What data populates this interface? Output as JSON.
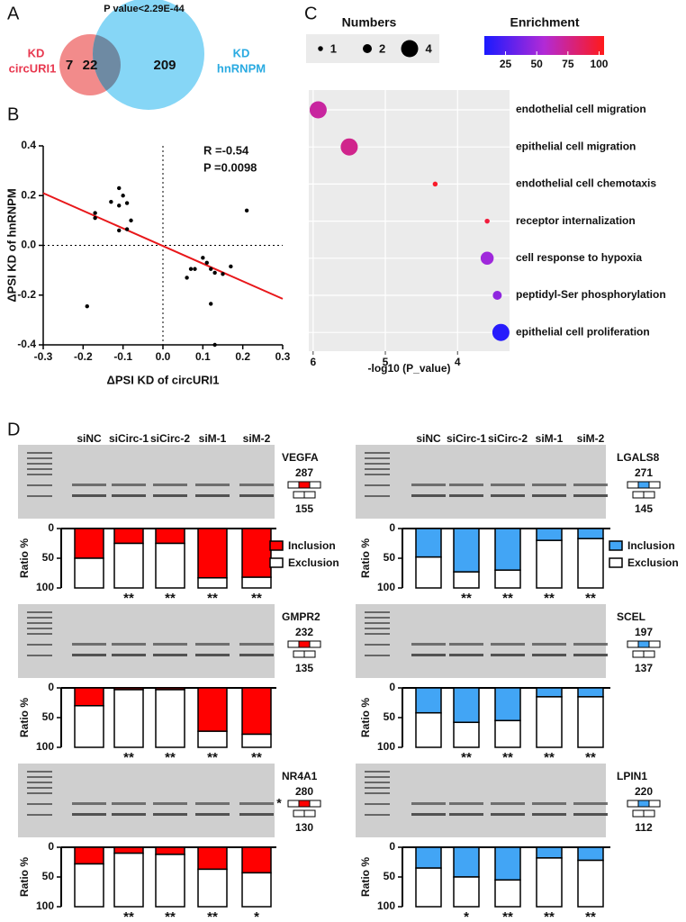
{
  "panel_labels": [
    "A",
    "B",
    "C",
    "D"
  ],
  "chart_data": [
    {
      "type": "venn",
      "title": "P value<2.29E-44",
      "sets": [
        {
          "label": [
            "KD",
            "circURI1"
          ],
          "color": "#f28b8b",
          "text_color": "#e8384f"
        },
        {
          "label": [
            "KD",
            "hnRNPM"
          ],
          "color": "#86d6f6",
          "text_color": "#29aae1"
        }
      ],
      "values": [
        7,
        22,
        209
      ],
      "overlap_color": "#6e8aa3"
    },
    {
      "type": "scatter",
      "x": [
        -0.17,
        -0.17,
        -0.13,
        -0.11,
        -0.1,
        -0.11,
        -0.09,
        -0.08,
        -0.11,
        -0.09,
        -0.19,
        0.21,
        0.07,
        0.06,
        0.08,
        0.1,
        0.11,
        0.12,
        0.13,
        0.15,
        0.17,
        0.12,
        0.13
      ],
      "y": [
        0.13,
        0.11,
        0.175,
        0.23,
        0.2,
        0.16,
        0.17,
        0.1,
        0.06,
        0.065,
        -0.245,
        0.14,
        -0.095,
        -0.13,
        -0.095,
        -0.05,
        -0.07,
        -0.095,
        -0.11,
        -0.115,
        -0.085,
        -0.235,
        -0.4
      ],
      "color": "#000000",
      "fit": {
        "x": [
          -0.3,
          0.3
        ],
        "y": [
          0.21,
          -0.215
        ],
        "color": "#e8171a"
      },
      "annotations": [
        "R =-0.54",
        "P =0.0098"
      ],
      "x_label": "ΔPSI KD of circURI1",
      "y_label": "ΔPSI KD of hnRNPM",
      "xlim": [
        -0.3,
        0.3
      ],
      "xticks": [
        -0.3,
        -0.2,
        -0.1,
        {
          "value": 0,
          "label": "0.0"
        },
        0.1,
        0.2,
        0.3
      ],
      "ylim": [
        -0.4,
        0.4
      ],
      "yticks": [
        -0.4,
        -0.2,
        {
          "value": 0,
          "label": "0.0"
        },
        0.2,
        0.4
      ]
    },
    {
      "type": "bubble",
      "categories": [
        "endothelial cell migration",
        "epithelial cell migration",
        "endothelial cell chemotaxis",
        "receptor internalization",
        "cell response to hypoxia",
        "peptidyl-Ser phosphorylation",
        "epithelial cell proliferation"
      ],
      "x": [
        5.93,
        5.5,
        4.31,
        3.59,
        3.59,
        3.45,
        3.4
      ],
      "sizes": [
        4,
        4,
        1,
        1,
        3,
        2,
        4
      ],
      "enrichment": [
        70,
        75,
        100,
        95,
        50,
        45,
        12
      ],
      "xlim": [
        6.06,
        3.28
      ],
      "xticks": [
        6,
        5,
        4
      ],
      "x_label": "-log10 (P_value)",
      "background": "#ebebeb",
      "size_legend": {
        "title": "Numbers",
        "values": [
          1,
          2,
          4
        ]
      },
      "color_legend": {
        "title": "Enrichment",
        "clim": [
          8,
          104
        ],
        "ticks": [
          25,
          50,
          75,
          100
        ],
        "colors": [
          "#1a1aff",
          "#b22ad6",
          "#ff1a1a"
        ]
      }
    },
    {
      "type": "stacked_bar",
      "lanes": [
        "siNC",
        "siCirc-1",
        "siCirc-2",
        "siM-1",
        "siM-2"
      ],
      "series_names": [
        "Inclusion",
        "Exclusion"
      ],
      "y_label": "Ratio %",
      "ylim": [
        0,
        100
      ],
      "yticks": [
        0,
        50,
        100
      ],
      "y_reversed": true,
      "panels": [
        {
          "gene": "VEGFA",
          "sizes": [
            287,
            155
          ],
          "colors": [
            "#ff0000",
            "#ffffff"
          ],
          "series": [
            {
              "values": [
                50,
                25,
                25,
                83,
                82
              ]
            },
            {
              "values": [
                50,
                75,
                75,
                17,
                18
              ]
            }
          ],
          "stars": [
            null,
            "**",
            "**",
            "**",
            "**"
          ]
        },
        {
          "gene": "LGALS8",
          "sizes": [
            271,
            145
          ],
          "colors": [
            "#42a5f5",
            "#ffffff"
          ],
          "series": [
            {
              "values": [
                48,
                73,
                70,
                20,
                17
              ]
            },
            {
              "values": [
                52,
                27,
                30,
                80,
                83
              ]
            }
          ],
          "stars": [
            null,
            "**",
            "**",
            "**",
            "**"
          ]
        },
        {
          "gene": "GMPR2",
          "sizes": [
            232,
            135
          ],
          "colors": [
            "#ff0000",
            "#ffffff"
          ],
          "series": [
            {
              "values": [
                30,
                3,
                3,
                73,
                78
              ]
            },
            {
              "values": [
                70,
                97,
                97,
                27,
                22
              ]
            }
          ],
          "stars": [
            null,
            "**",
            "**",
            "**",
            "**"
          ]
        },
        {
          "gene": "SCEL",
          "sizes": [
            197,
            137
          ],
          "colors": [
            "#42a5f5",
            "#ffffff"
          ],
          "series": [
            {
              "values": [
                42,
                58,
                55,
                15,
                15
              ]
            },
            {
              "values": [
                58,
                42,
                45,
                85,
                85
              ]
            }
          ],
          "stars": [
            null,
            "**",
            "**",
            "**",
            "**"
          ]
        },
        {
          "gene": "NR4A1",
          "sizes": [
            280,
            130
          ],
          "marker": "*",
          "colors": [
            "#ff0000",
            "#ffffff"
          ],
          "series": [
            {
              "values": [
                28,
                10,
                12,
                37,
                43
              ]
            },
            {
              "values": [
                72,
                90,
                88,
                63,
                57
              ]
            }
          ],
          "stars": [
            null,
            "**",
            "**",
            "**",
            "*"
          ]
        },
        {
          "gene": "LPIN1",
          "sizes": [
            220,
            112
          ],
          "colors": [
            "#42a5f5",
            "#ffffff"
          ],
          "series": [
            {
              "values": [
                35,
                50,
                55,
                18,
                22
              ]
            },
            {
              "values": [
                65,
                50,
                45,
                82,
                78
              ]
            }
          ],
          "stars": [
            null,
            "*",
            "**",
            "**",
            "**"
          ]
        }
      ]
    }
  ]
}
